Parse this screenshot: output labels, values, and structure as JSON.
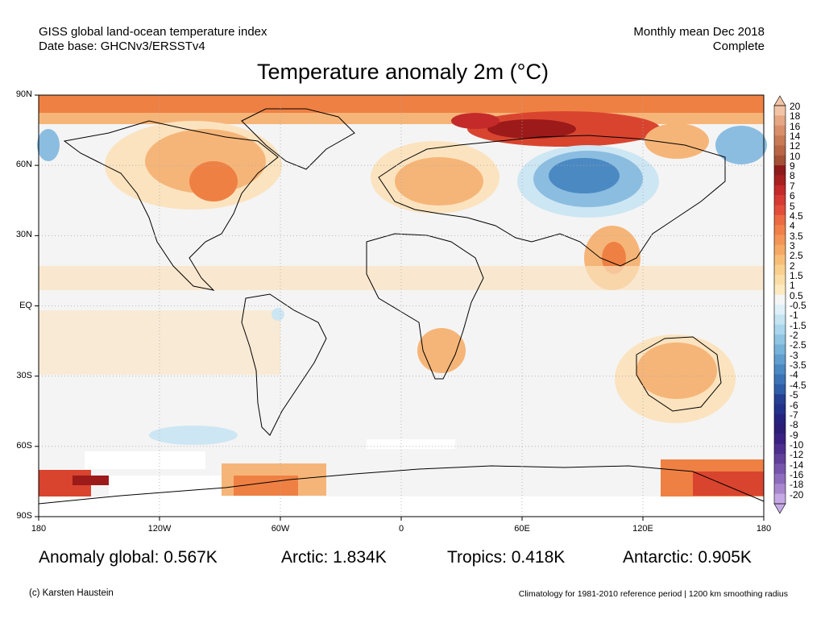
{
  "header": {
    "line1_left": "GISS global land-ocean temperature index",
    "line2_left": "Date base: GHCNv3/ERSSTv4",
    "line1_right": "Monthly mean Dec 2018",
    "line2_right": "Complete"
  },
  "title": "Temperature anomaly 2m (°C)",
  "lat_labels": [
    "90N",
    "60N",
    "30N",
    "EQ",
    "30S",
    "60S",
    "90S"
  ],
  "lon_labels": [
    "180",
    "120W",
    "60W",
    "0",
    "60E",
    "120E",
    "180"
  ],
  "stats": {
    "global": "Anomaly global: 0.567K",
    "arctic": "Arctic: 1.834K",
    "tropics": "Tropics: 0.418K",
    "antarctic": "Antarctic: 0.905K"
  },
  "footer": {
    "credit": "(c) Karsten Haustein",
    "climatology": "Climatology for 1981-2010 reference period | 1200 km smoothing radius"
  },
  "colorbar": {
    "labels": [
      "20",
      "18",
      "16",
      "14",
      "12",
      "10",
      "9",
      "8",
      "7",
      "6",
      "5",
      "4.5",
      "4",
      "3.5",
      "3",
      "2.5",
      "2",
      "1.5",
      "1",
      "0.5",
      "-0.5",
      "-1",
      "-1.5",
      "-2",
      "-2.5",
      "-3",
      "-3.5",
      "-4",
      "-4.5",
      "-5",
      "-6",
      "-7",
      "-8",
      "-9",
      "-10",
      "-12",
      "-14",
      "-16",
      "-18",
      "-20"
    ],
    "colors": [
      "#f2c4a6",
      "#e6a784",
      "#d9906a",
      "#c97b55",
      "#b86645",
      "#a35036",
      "#8e1b1b",
      "#a81f1f",
      "#c42a2a",
      "#d63a33",
      "#e24e3a",
      "#ec6a42",
      "#f08048",
      "#f39556",
      "#f6a964",
      "#f8be78",
      "#fad08e",
      "#fbdea7",
      "#fdeac0",
      "#f5f5f5",
      "#dff0f8",
      "#c4e4f2",
      "#a9d6ec",
      "#8fc5e3",
      "#76b2d9",
      "#5f9ecf",
      "#4b89c3",
      "#3b73b6",
      "#2f5ea8",
      "#263f92",
      "#22318a",
      "#25237e",
      "#2c1e77",
      "#3b2182",
      "#4e2e8e",
      "#61409b",
      "#7755ac",
      "#8e6cbd",
      "#a887cf",
      "#c5a9e4"
    ]
  },
  "map_colors": {
    "ocean_neutral": "#f4f4f4",
    "warm_light": "#fbe3bf",
    "warm_mid": "#f6b578",
    "warm_strong": "#ef8043",
    "warm_hot": "#d9442f",
    "warm_extreme": "#9c1a1a",
    "cool_light": "#cde6f3",
    "cool_mid": "#8bbde0",
    "cool_strong": "#4b89c3"
  }
}
